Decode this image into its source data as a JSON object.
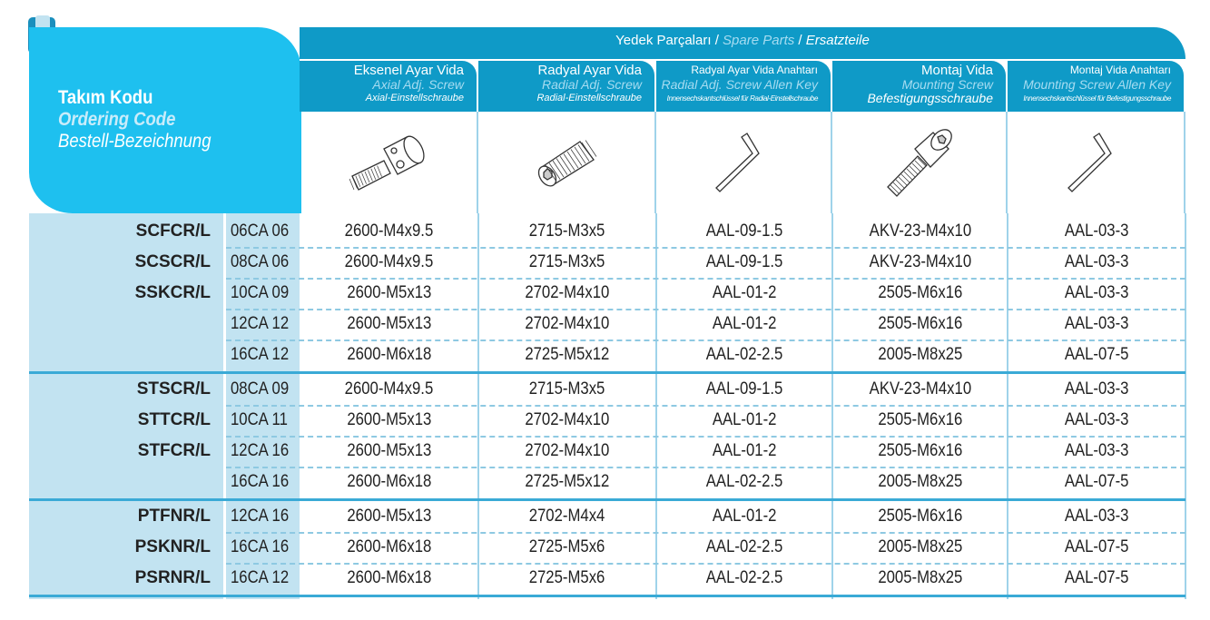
{
  "header": {
    "title_tr": "Takım Kodu",
    "title_en": "Ordering Code",
    "title_de": "Bestell-Bezeichnung",
    "band_tr": "Yedek Parçaları",
    "band_sep1": " / ",
    "band_en": "Spare Parts",
    "band_sep2": " / ",
    "band_de": "Ersatzteile"
  },
  "columns": [
    {
      "tr": "Eksenel Ayar Vida",
      "en": "Axial Adj. Screw",
      "de": "Axial-Einstellschraube",
      "icon": "axial-screw-icon"
    },
    {
      "tr": "Radyal Ayar Vida",
      "en": "Radial Adj. Screw",
      "de": "Radial-Einstellschraube",
      "icon": "set-screw-icon"
    },
    {
      "tr": "Radyal Ayar Vida Anahtarı",
      "en": "Radial Adj. Screw Allen Key",
      "de": "Innensechskantschlüssel für Radial-Einstellschraube",
      "icon": "allen-key-icon"
    },
    {
      "tr": "Montaj Vida",
      "en": "Mounting Screw",
      "de": "Befestigungsschraube",
      "icon": "socket-cap-screw-icon"
    },
    {
      "tr": "Montaj Vida Anahtarı",
      "en": "Mounting Screw Allen Key",
      "de": "Innensechskantschlüssel für Befestigungsschraube",
      "icon": "allen-key-icon"
    }
  ],
  "colors": {
    "panel": "#1ec0ef",
    "band": "#0f9ac7",
    "body": "#c2e3f1",
    "separator": "#3aaad6"
  },
  "groups": [
    {
      "rows": [
        {
          "code": "SCFCR/L",
          "size": "06CA 06",
          "values": [
            "2600-M4x9.5",
            "2715-M3x5",
            "AAL-09-1.5",
            "AKV-23-M4x10",
            "AAL-03-3"
          ]
        },
        {
          "code": "SCSCR/L",
          "size": "08CA 06",
          "values": [
            "2600-M4x9.5",
            "2715-M3x5",
            "AAL-09-1.5",
            "AKV-23-M4x10",
            "AAL-03-3"
          ]
        },
        {
          "code": "SSKCR/L",
          "size": "10CA 09",
          "values": [
            "2600-M5x13",
            "2702-M4x10",
            "AAL-01-2",
            "2505-M6x16",
            "AAL-03-3"
          ]
        },
        {
          "code": "",
          "size": "12CA 12",
          "values": [
            "2600-M5x13",
            "2702-M4x10",
            "AAL-01-2",
            "2505-M6x16",
            "AAL-03-3"
          ]
        },
        {
          "code": "",
          "size": "16CA 12",
          "values": [
            "2600-M6x18",
            "2725-M5x12",
            "AAL-02-2.5",
            "2005-M8x25",
            "AAL-07-5"
          ]
        }
      ]
    },
    {
      "rows": [
        {
          "code": "STSCR/L",
          "size": "08CA 09",
          "values": [
            "2600-M4x9.5",
            "2715-M3x5",
            "AAL-09-1.5",
            "AKV-23-M4x10",
            "AAL-03-3"
          ]
        },
        {
          "code": "STTCR/L",
          "size": "10CA 11",
          "values": [
            "2600-M5x13",
            "2702-M4x10",
            "AAL-01-2",
            "2505-M6x16",
            "AAL-03-3"
          ]
        },
        {
          "code": "STFCR/L",
          "size": "12CA 16",
          "values": [
            "2600-M5x13",
            "2702-M4x10",
            "AAL-01-2",
            "2505-M6x16",
            "AAL-03-3"
          ]
        },
        {
          "code": "",
          "size": "16CA 16",
          "values": [
            "2600-M6x18",
            "2725-M5x12",
            "AAL-02-2.5",
            "2005-M8x25",
            "AAL-07-5"
          ]
        }
      ]
    },
    {
      "rows": [
        {
          "code": "PTFNR/L",
          "size": "12CA 16",
          "values": [
            "2600-M5x13",
            "2702-M4x4",
            "AAL-01-2",
            "2505-M6x16",
            "AAL-03-3"
          ]
        },
        {
          "code": "PSKNR/L",
          "size": "16CA 16",
          "values": [
            "2600-M6x18",
            "2725-M5x6",
            "AAL-02-2.5",
            "2005-M8x25",
            "AAL-07-5"
          ]
        },
        {
          "code": "PSRNR/L",
          "size": "16CA 12",
          "values": [
            "2600-M6x18",
            "2725-M5x6",
            "AAL-02-2.5",
            "2005-M8x25",
            "AAL-07-5"
          ]
        }
      ]
    }
  ]
}
